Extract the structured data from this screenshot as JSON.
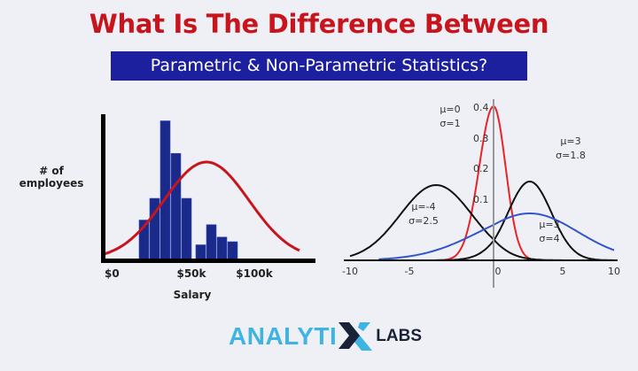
{
  "header": {
    "title": "What Is The Difference Between",
    "subtitle": "Parametric & Non-Parametric Statistics?"
  },
  "logo": {
    "text_main": "ANALYTI",
    "text_x": "X",
    "text_suffix": "LABS"
  },
  "colors": {
    "title": "#c8141c",
    "banner": "#1c1f9e",
    "bars": "#1a2a8a",
    "red_curve": "#c8141c",
    "logo_light": "#3fb4e3",
    "logo_dark": "#1a2238"
  },
  "chart_data": [
    {
      "type": "bar",
      "ylabel": "# of\nemployees",
      "ylabel_lines": [
        "# of",
        "employees"
      ],
      "xlabel": "Salary",
      "xticks": [
        "$0",
        "$50k",
        "$100k"
      ],
      "bar_relative_heights": [
        2.6,
        4,
        9,
        6.9,
        4,
        0,
        1,
        2.3,
        1.5,
        1.2
      ],
      "overlay": "normal curve (red)",
      "grid": false
    },
    {
      "type": "line",
      "xticks": [
        "-10",
        "-5",
        "0",
        "5",
        "10"
      ],
      "yticks": [
        "0.1",
        "0.2",
        "0.3",
        "0.4"
      ],
      "xlim": [
        -10,
        10
      ],
      "ylim": [
        0,
        0.4
      ],
      "series": [
        {
          "label": [
            "μ=0",
            "σ=1"
          ],
          "mu": 0,
          "sigma": 1,
          "color": "#e8232a"
        },
        {
          "label": [
            "μ=-4",
            "σ=2.5"
          ],
          "mu": -4,
          "sigma": 2.5,
          "color": "#111111"
        },
        {
          "label": [
            "μ=3",
            "σ=1.8"
          ],
          "mu": 3,
          "sigma": 1.8,
          "color": "#111111"
        },
        {
          "label": [
            "μ=3",
            "σ=4"
          ],
          "mu": 3,
          "sigma": 4,
          "color": "#3355cc"
        }
      ],
      "grid": false
    }
  ]
}
